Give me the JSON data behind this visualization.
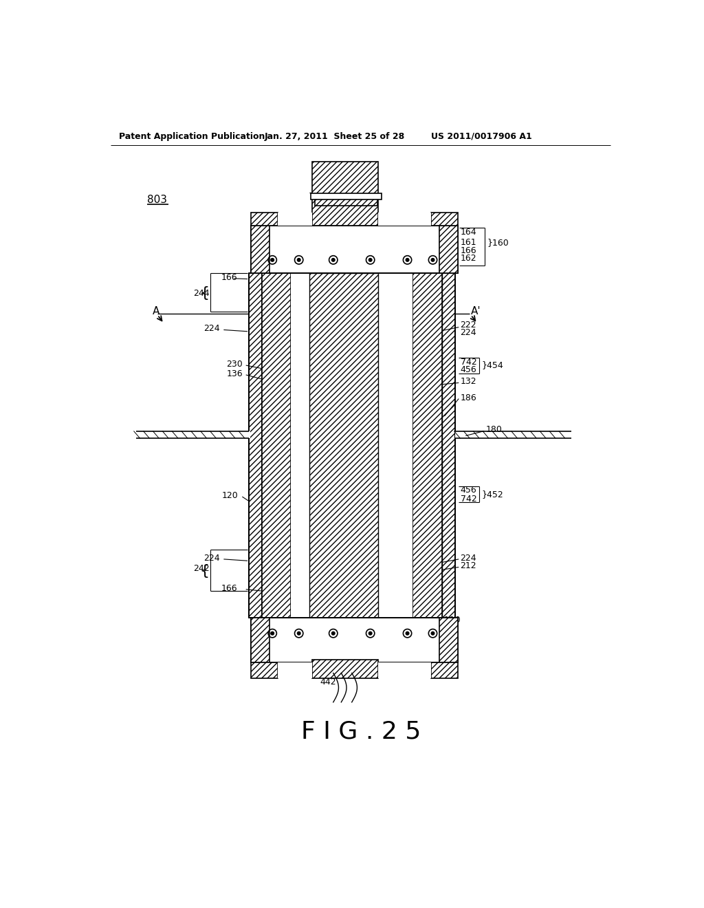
{
  "bg_color": "#ffffff",
  "header_left": "Patent Application Publication",
  "header_center": "Jan. 27, 2011  Sheet 25 of 28",
  "header_right": "US 2011/0017906 A1",
  "fig_label": "F I G . 2 5",
  "label_803": "803"
}
